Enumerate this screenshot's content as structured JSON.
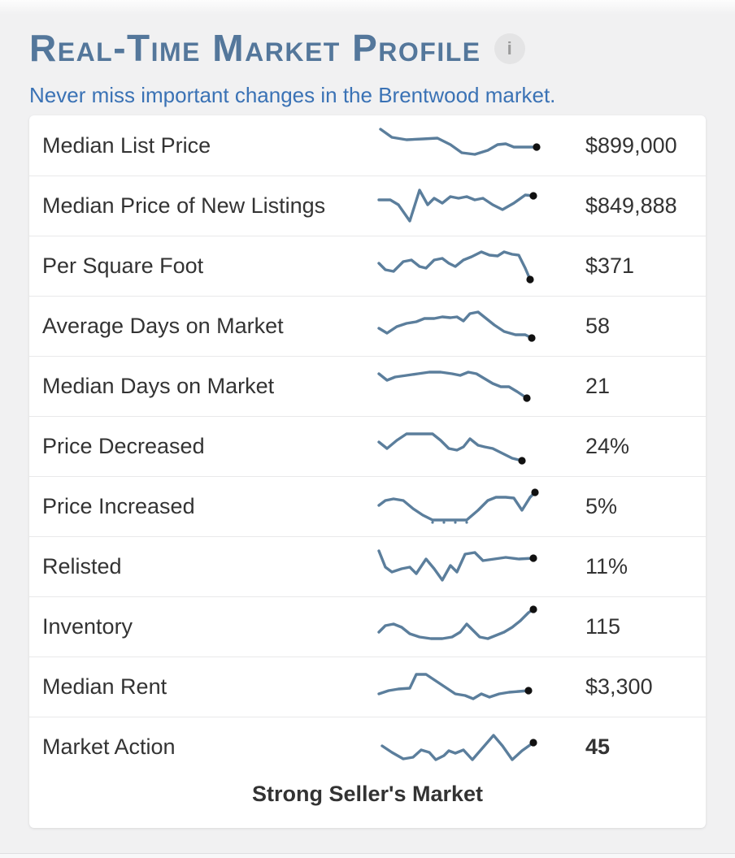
{
  "header": {
    "title": "Real-Time Market Profile",
    "info_icon_glyph": "i"
  },
  "subtitle": "Never miss important changes in the Brentwood market.",
  "status": "Strong Seller's Market",
  "colors": {
    "line": "#5b7e9c",
    "end_dot": "#111111",
    "title_text": "#54779b",
    "subtitle_text": "#3a72b5",
    "label_text": "#333333"
  },
  "chart_data": {
    "type": "line",
    "note": "sparkline trend per metric; points are relative x,y in a 210x52 box (y inverted)",
    "rows": [
      {
        "label": "Median List Price",
        "value": "$899,000",
        "bold": false,
        "points": [
          [
            8,
            8
          ],
          [
            22,
            18
          ],
          [
            40,
            21
          ],
          [
            60,
            20
          ],
          [
            78,
            19
          ],
          [
            94,
            27
          ],
          [
            108,
            37
          ],
          [
            124,
            39
          ],
          [
            140,
            34
          ],
          [
            152,
            27
          ],
          [
            162,
            26
          ],
          [
            172,
            30
          ],
          [
            186,
            30
          ],
          [
            200,
            30
          ]
        ]
      },
      {
        "label": "Median Price of New Listings",
        "value": "$849,888",
        "bold": false,
        "points": [
          [
            6,
            20
          ],
          [
            20,
            20
          ],
          [
            30,
            26
          ],
          [
            44,
            46
          ],
          [
            56,
            8
          ],
          [
            66,
            26
          ],
          [
            74,
            18
          ],
          [
            84,
            24
          ],
          [
            94,
            16
          ],
          [
            104,
            18
          ],
          [
            114,
            16
          ],
          [
            124,
            20
          ],
          [
            134,
            18
          ],
          [
            146,
            26
          ],
          [
            158,
            32
          ],
          [
            172,
            24
          ],
          [
            186,
            14
          ],
          [
            196,
            15
          ]
        ]
      },
      {
        "label": "Per Square Foot",
        "value": "$371",
        "bold": false,
        "points": [
          [
            6,
            24
          ],
          [
            14,
            32
          ],
          [
            24,
            34
          ],
          [
            36,
            22
          ],
          [
            46,
            20
          ],
          [
            56,
            28
          ],
          [
            64,
            30
          ],
          [
            74,
            20
          ],
          [
            84,
            18
          ],
          [
            92,
            24
          ],
          [
            100,
            28
          ],
          [
            110,
            20
          ],
          [
            120,
            16
          ],
          [
            132,
            10
          ],
          [
            142,
            14
          ],
          [
            152,
            15
          ],
          [
            160,
            10
          ],
          [
            170,
            13
          ],
          [
            178,
            14
          ],
          [
            186,
            30
          ],
          [
            192,
            44
          ]
        ]
      },
      {
        "label": "Average Days on Market",
        "value": "58",
        "bold": false,
        "points": [
          [
            6,
            30
          ],
          [
            16,
            36
          ],
          [
            28,
            28
          ],
          [
            40,
            24
          ],
          [
            52,
            22
          ],
          [
            62,
            18
          ],
          [
            74,
            18
          ],
          [
            84,
            16
          ],
          [
            94,
            17
          ],
          [
            102,
            16
          ],
          [
            110,
            21
          ],
          [
            118,
            12
          ],
          [
            128,
            10
          ],
          [
            138,
            18
          ],
          [
            148,
            26
          ],
          [
            160,
            34
          ],
          [
            174,
            38
          ],
          [
            186,
            38
          ],
          [
            194,
            42
          ]
        ]
      },
      {
        "label": "Median Days on Market",
        "value": "21",
        "bold": false,
        "points": [
          [
            6,
            12
          ],
          [
            16,
            20
          ],
          [
            26,
            16
          ],
          [
            40,
            14
          ],
          [
            54,
            12
          ],
          [
            68,
            10
          ],
          [
            82,
            10
          ],
          [
            96,
            12
          ],
          [
            106,
            14
          ],
          [
            116,
            10
          ],
          [
            126,
            12
          ],
          [
            136,
            18
          ],
          [
            146,
            24
          ],
          [
            156,
            28
          ],
          [
            166,
            28
          ],
          [
            176,
            34
          ],
          [
            188,
            42
          ]
        ]
      },
      {
        "label": "Price Decreased",
        "value": "24%",
        "bold": false,
        "points": [
          [
            6,
            22
          ],
          [
            16,
            30
          ],
          [
            28,
            20
          ],
          [
            40,
            12
          ],
          [
            56,
            12
          ],
          [
            72,
            12
          ],
          [
            82,
            20
          ],
          [
            92,
            30
          ],
          [
            102,
            32
          ],
          [
            110,
            28
          ],
          [
            118,
            18
          ],
          [
            128,
            26
          ],
          [
            136,
            28
          ],
          [
            146,
            30
          ],
          [
            158,
            36
          ],
          [
            170,
            42
          ],
          [
            182,
            45
          ]
        ]
      },
      {
        "label": "Price Increased",
        "value": "5%",
        "bold": false,
        "points": [
          [
            6,
            26
          ],
          [
            14,
            20
          ],
          [
            24,
            18
          ],
          [
            36,
            20
          ],
          [
            48,
            30
          ],
          [
            60,
            38
          ],
          [
            72,
            44
          ],
          [
            86,
            44
          ],
          [
            100,
            44
          ],
          [
            114,
            44
          ],
          [
            128,
            32
          ],
          [
            140,
            20
          ],
          [
            150,
            16
          ],
          [
            162,
            16
          ],
          [
            172,
            17
          ],
          [
            182,
            32
          ],
          [
            192,
            16
          ],
          [
            198,
            10
          ]
        ],
        "markers": [
          [
            72,
            47
          ],
          [
            86,
            47
          ],
          [
            100,
            47
          ],
          [
            114,
            47
          ]
        ]
      },
      {
        "label": "Relisted",
        "value": "11%",
        "bold": false,
        "points": [
          [
            6,
            8
          ],
          [
            14,
            28
          ],
          [
            22,
            34
          ],
          [
            34,
            30
          ],
          [
            44,
            28
          ],
          [
            52,
            36
          ],
          [
            64,
            18
          ],
          [
            74,
            30
          ],
          [
            84,
            44
          ],
          [
            94,
            26
          ],
          [
            102,
            34
          ],
          [
            112,
            12
          ],
          [
            124,
            10
          ],
          [
            134,
            20
          ],
          [
            148,
            18
          ],
          [
            162,
            16
          ],
          [
            178,
            18
          ],
          [
            196,
            17
          ]
        ]
      },
      {
        "label": "Inventory",
        "value": "115",
        "bold": false,
        "points": [
          [
            6,
            34
          ],
          [
            14,
            26
          ],
          [
            24,
            24
          ],
          [
            34,
            28
          ],
          [
            44,
            36
          ],
          [
            56,
            40
          ],
          [
            70,
            42
          ],
          [
            84,
            42
          ],
          [
            96,
            40
          ],
          [
            106,
            34
          ],
          [
            114,
            24
          ],
          [
            122,
            32
          ],
          [
            130,
            40
          ],
          [
            140,
            42
          ],
          [
            150,
            38
          ],
          [
            160,
            34
          ],
          [
            170,
            28
          ],
          [
            180,
            20
          ],
          [
            190,
            10
          ],
          [
            196,
            6
          ]
        ]
      },
      {
        "label": "Median Rent",
        "value": "$3,300",
        "bold": false,
        "points": [
          [
            6,
            36
          ],
          [
            18,
            32
          ],
          [
            30,
            30
          ],
          [
            44,
            29
          ],
          [
            52,
            12
          ],
          [
            64,
            12
          ],
          [
            76,
            20
          ],
          [
            88,
            28
          ],
          [
            100,
            36
          ],
          [
            112,
            38
          ],
          [
            122,
            42
          ],
          [
            132,
            36
          ],
          [
            142,
            40
          ],
          [
            154,
            36
          ],
          [
            166,
            34
          ],
          [
            178,
            33
          ],
          [
            190,
            32
          ]
        ]
      },
      {
        "label": "Market Action",
        "value": "45",
        "bold": true,
        "points": [
          [
            10,
            26
          ],
          [
            22,
            34
          ],
          [
            36,
            42
          ],
          [
            48,
            40
          ],
          [
            58,
            31
          ],
          [
            68,
            34
          ],
          [
            76,
            43
          ],
          [
            86,
            38
          ],
          [
            92,
            32
          ],
          [
            100,
            35
          ],
          [
            110,
            31
          ],
          [
            121,
            43
          ],
          [
            134,
            28
          ],
          [
            147,
            13
          ],
          [
            158,
            26
          ],
          [
            170,
            43
          ],
          [
            182,
            32
          ],
          [
            196,
            22
          ]
        ]
      }
    ]
  }
}
